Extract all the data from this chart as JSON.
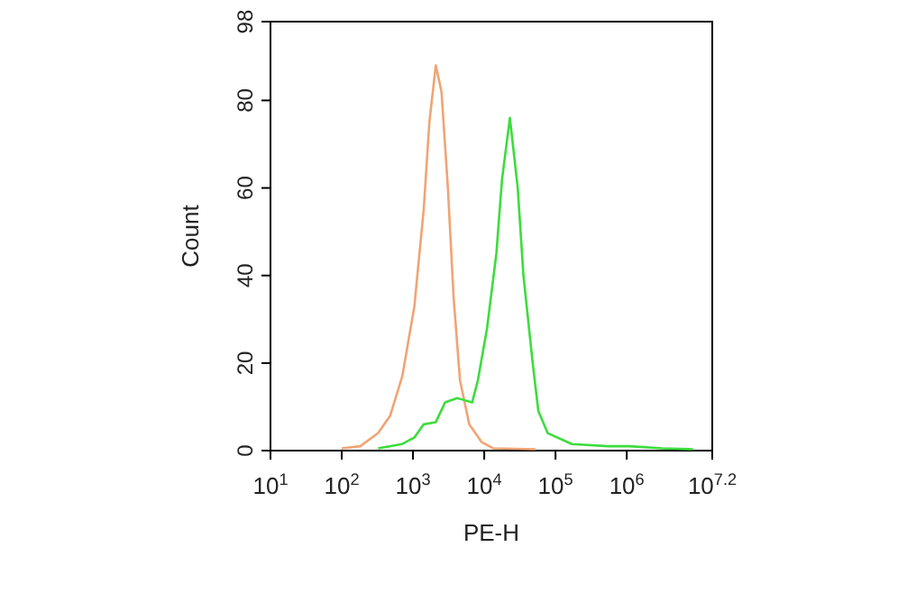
{
  "chart_data": {
    "type": "line",
    "xlabel": "PE-H",
    "ylabel": "Count",
    "log": "x",
    "xlim": [
      10,
      15848932
    ],
    "xticks": [
      {
        "value": 10,
        "label": "10$^{1}$"
      },
      {
        "value": 100,
        "label": "10$^{2}$"
      },
      {
        "value": 1000,
        "label": "10$^{3}$"
      },
      {
        "value": 10000,
        "label": "10$^{4}$"
      },
      {
        "value": 100000,
        "label": "10$^{5}$"
      },
      {
        "value": 1000000,
        "label": "10$^{6}$"
      },
      {
        "value": 15848932,
        "label": "10$^{7.2}$"
      }
    ],
    "ylim": [
      0,
      98
    ],
    "yticks": [
      0,
      20,
      40,
      60,
      80,
      98
    ],
    "grid": false,
    "marker": "none",
    "line_style": "solid",
    "series": [
      {
        "color": "#f0a474",
        "x": [
          100,
          182,
          324,
          479,
          708,
          1047,
          1413,
          1698,
          2089,
          2512,
          3090,
          3715,
          4571,
          6166,
          9120,
          13490,
          52480
        ],
        "values": [
          0.5,
          1,
          4,
          8,
          17,
          33,
          55,
          75,
          88,
          82,
          60,
          35,
          16,
          6,
          2,
          0.5,
          0.3
        ]
      },
      {
        "color": "#3ddc3d",
        "x": [
          324,
          708,
          1047,
          1413,
          2089,
          2818,
          4169,
          6761,
          8128,
          10960,
          14790,
          17780,
          22910,
          29510,
          35480,
          47860,
          57540,
          77620,
          169800,
          549500,
          1096000,
          3162000,
          8511000
        ],
        "values": [
          0.5,
          1.5,
          3,
          6,
          6.5,
          11,
          12,
          11,
          16,
          28,
          45,
          62,
          76,
          60,
          40,
          20,
          9,
          4,
          1.5,
          1,
          1,
          0.5,
          0.3
        ]
      }
    ]
  }
}
